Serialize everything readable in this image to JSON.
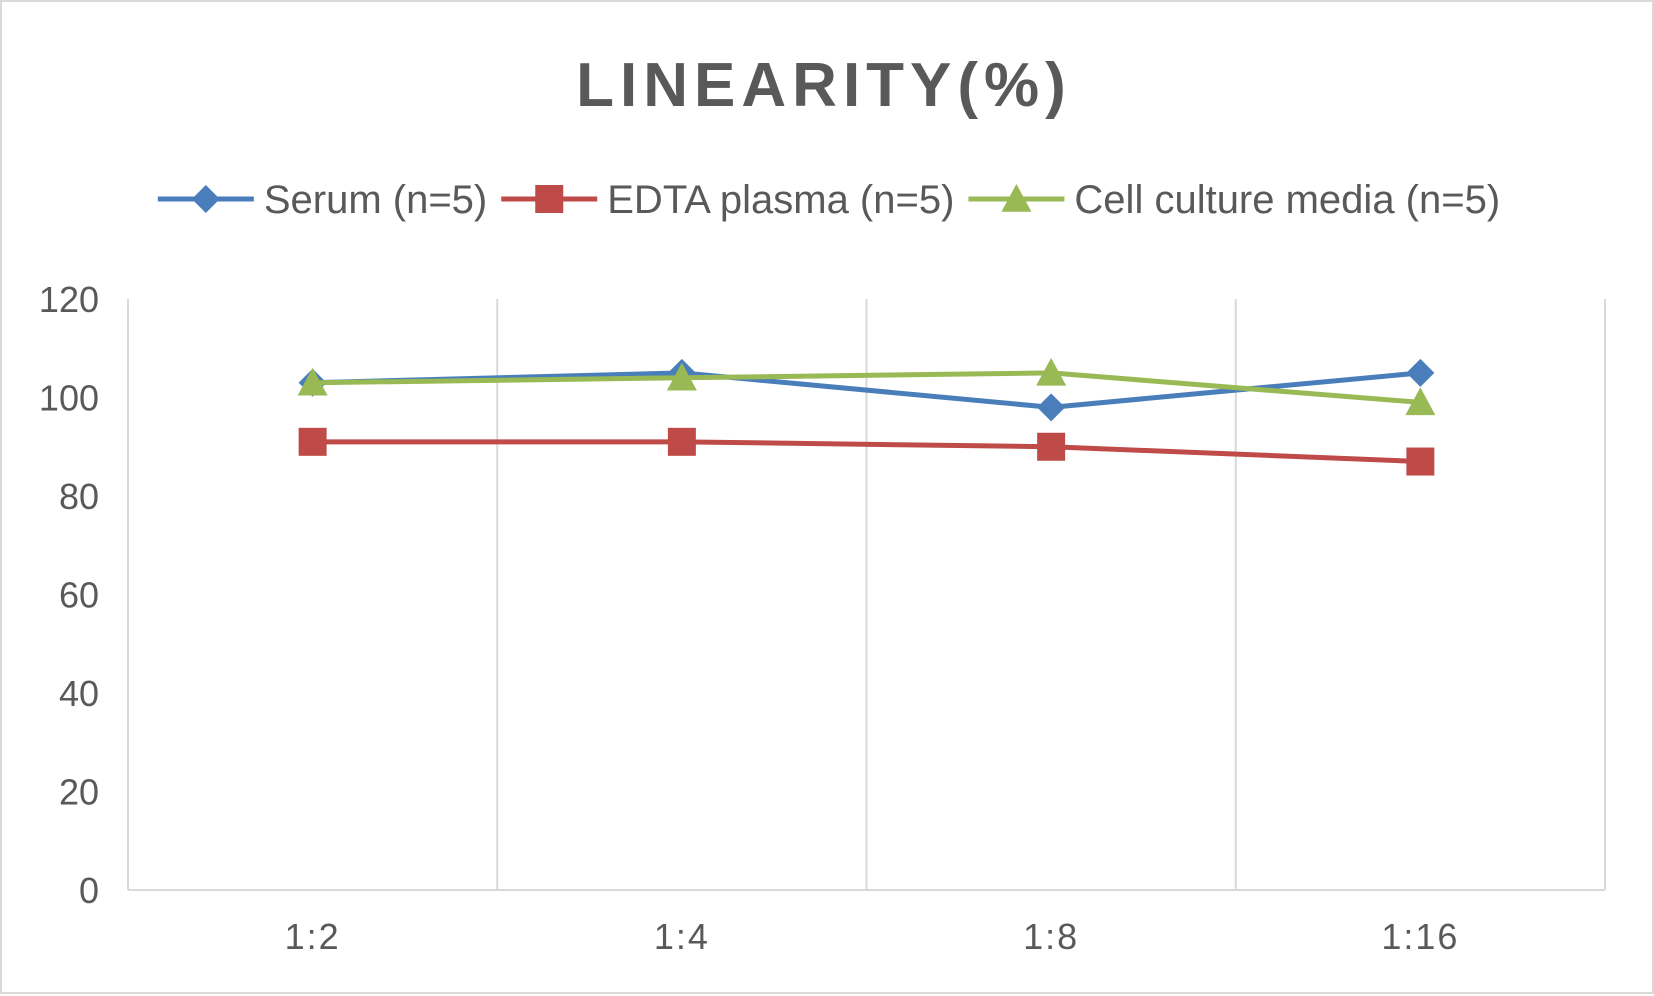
{
  "chart_data": {
    "type": "line",
    "title": "LINEARITY(%)",
    "xlabel": "",
    "ylabel": "",
    "categories": [
      "1:2",
      "1:4",
      "1:8",
      "1:16"
    ],
    "ylim": [
      0,
      120
    ],
    "yticks": [
      0,
      20,
      40,
      60,
      80,
      100,
      120
    ],
    "grid": "vertical",
    "legend_position": "top",
    "series": [
      {
        "name": "Serum (n=5)",
        "values": [
          103,
          105,
          98,
          105
        ],
        "color": "#4a7ebb",
        "marker": "diamond"
      },
      {
        "name": "EDTA plasma (n=5)",
        "values": [
          91,
          91,
          90,
          87
        ],
        "color": "#be4b48",
        "marker": "square"
      },
      {
        "name": "Cell culture media (n=5)",
        "values": [
          103,
          104,
          105,
          99
        ],
        "color": "#98b954",
        "marker": "triangle"
      }
    ]
  }
}
